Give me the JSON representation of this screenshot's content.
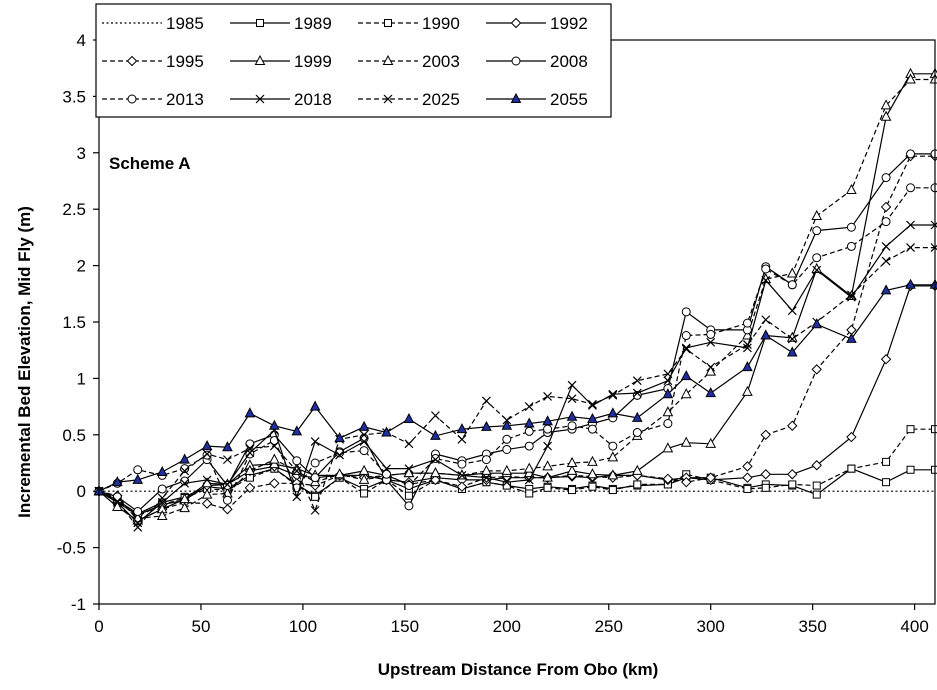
{
  "chart_data": {
    "type": "line",
    "title": "",
    "xlabel": "Upstream Distance From Obo (km)",
    "ylabel": "Incremental Bed Elevation, Mid Fly (m)",
    "annotation": "Scheme A",
    "xlim": [
      0,
      410
    ],
    "ylim": [
      -1,
      4
    ],
    "x_ticks": [
      0,
      50,
      100,
      150,
      200,
      250,
      300,
      350,
      400
    ],
    "y_ticks": [
      -1,
      -0.5,
      0,
      0.5,
      1,
      1.5,
      2,
      2.5,
      3,
      3.5,
      4
    ],
    "x_tick_labels": [
      "0",
      "50",
      "100",
      "150",
      "200",
      "250",
      "300",
      "350",
      "400"
    ],
    "y_tick_labels": [
      "-1",
      "-0.5",
      "0",
      "0.5",
      "1",
      "1.5",
      "2",
      "2.5",
      "3",
      "3.5",
      "4"
    ],
    "grid": false,
    "legend_position": "top-left",
    "x": [
      0,
      9,
      19,
      31,
      42,
      53,
      63,
      74,
      86,
      97,
      106,
      118,
      130,
      141,
      152,
      165,
      178,
      190,
      200,
      211,
      220,
      232,
      242,
      252,
      264,
      279,
      288,
      300,
      318,
      327,
      340,
      352,
      369,
      386,
      398,
      410
    ],
    "series": [
      {
        "name": "1985",
        "line": "dotted",
        "marker": "none",
        "values": [
          0,
          0,
          0,
          0,
          0,
          0,
          0,
          0,
          0,
          0,
          0,
          0,
          0,
          0,
          0,
          0,
          0,
          0,
          0,
          0,
          0,
          0,
          0,
          0,
          0,
          0,
          0,
          0,
          0,
          0,
          0,
          0,
          0,
          0,
          0,
          0
        ]
      },
      {
        "name": "1989",
        "line": "solid",
        "marker": "square-open",
        "values": [
          0,
          -0.08,
          -0.2,
          -0.1,
          -0.05,
          0.04,
          0.02,
          0.14,
          0.2,
          0.06,
          -0.04,
          0.12,
          0.02,
          0.1,
          0.02,
          0.1,
          0.02,
          0.08,
          0.05,
          0.02,
          0.04,
          0.02,
          0.05,
          0.02,
          0.05,
          0.06,
          0.12,
          0.12,
          0.03,
          0.06,
          0.05,
          -0.03,
          0.2,
          0.08,
          0.19,
          0.19
        ]
      },
      {
        "name": "1990",
        "line": "dashed",
        "marker": "square-open",
        "values": [
          0,
          -0.09,
          -0.22,
          -0.12,
          -0.06,
          0.02,
          0.01,
          0.12,
          0.2,
          0.05,
          -0.05,
          0.12,
          -0.02,
          0.1,
          -0.04,
          0.1,
          0.02,
          0.08,
          0.05,
          -0.02,
          0.03,
          0.01,
          0.04,
          0.01,
          0.06,
          0.06,
          0.15,
          0.1,
          0.02,
          0.03,
          0.06,
          0.05,
          0.2,
          0.26,
          0.55,
          0.55
        ]
      },
      {
        "name": "1992",
        "line": "solid",
        "marker": "diamond-open",
        "values": [
          0,
          -0.1,
          -0.21,
          -0.12,
          -0.08,
          0.05,
          0.06,
          0.18,
          0.22,
          0.14,
          0.12,
          0.14,
          0.14,
          0.1,
          0.08,
          0.12,
          0.1,
          0.1,
          0.12,
          0.12,
          0.12,
          0.13,
          0.12,
          0.14,
          0.14,
          0.1,
          0.12,
          0.1,
          0.12,
          0.15,
          0.15,
          0.23,
          0.48,
          1.17,
          1.82,
          1.82
        ]
      },
      {
        "name": "1995",
        "line": "dashed",
        "marker": "diamond-open",
        "values": [
          0,
          -0.04,
          -0.26,
          -0.16,
          -0.1,
          -0.11,
          -0.16,
          0.03,
          0.07,
          0.07,
          0.05,
          0.14,
          0.12,
          0.14,
          0.06,
          0.1,
          0.04,
          0.12,
          0.13,
          0.12,
          0.12,
          0.14,
          0.13,
          0.12,
          0.14,
          0.11,
          0.08,
          0.12,
          0.22,
          0.5,
          0.58,
          1.08,
          1.43,
          2.52,
          2.97,
          2.97
        ]
      },
      {
        "name": "1999",
        "line": "solid",
        "marker": "triangle-open",
        "values": [
          0,
          -0.14,
          -0.26,
          -0.16,
          -0.07,
          0.07,
          0.06,
          0.23,
          0.24,
          0.2,
          0.14,
          0.14,
          0.18,
          0.14,
          0.16,
          0.16,
          0.14,
          0.16,
          0.16,
          0.16,
          0.12,
          0.18,
          0.15,
          0.14,
          0.18,
          0.38,
          0.43,
          0.42,
          0.88,
          1.38,
          1.36,
          1.97,
          1.73,
          3.32,
          3.7,
          3.7
        ]
      },
      {
        "name": "2003",
        "line": "dashed",
        "marker": "triangle-open",
        "values": [
          0,
          -0.07,
          -0.24,
          -0.22,
          -0.15,
          -0.03,
          -0.02,
          0.18,
          0.28,
          0.18,
          0.08,
          0.15,
          0.1,
          0.14,
          0.16,
          0.16,
          0.14,
          0.18,
          0.18,
          0.2,
          0.22,
          0.25,
          0.26,
          0.3,
          0.49,
          0.7,
          0.86,
          1.06,
          1.38,
          1.88,
          1.93,
          2.44,
          2.67,
          3.42,
          3.65,
          3.65
        ]
      },
      {
        "name": "2008",
        "line": "solid",
        "marker": "circle-open",
        "values": [
          0,
          -0.05,
          -0.18,
          0.02,
          0.09,
          0.28,
          0.05,
          0.42,
          0.5,
          0.27,
          0.12,
          0.35,
          0.47,
          0.1,
          -0.13,
          0.33,
          0.27,
          0.33,
          0.37,
          0.4,
          0.52,
          0.55,
          0.6,
          0.65,
          0.85,
          0.91,
          1.59,
          1.43,
          1.43,
          1.99,
          1.83,
          2.31,
          2.34,
          2.78,
          2.99,
          2.99
        ]
      },
      {
        "name": "2013",
        "line": "dashed",
        "marker": "circle-open",
        "values": [
          0,
          0.07,
          0.19,
          0.14,
          0.2,
          0.32,
          -0.08,
          0.33,
          0.45,
          0.03,
          0.25,
          0.34,
          0.36,
          0.15,
          0.05,
          0.29,
          0.24,
          0.28,
          0.46,
          0.53,
          0.55,
          0.58,
          0.55,
          0.4,
          0.52,
          0.6,
          1.38,
          1.39,
          1.49,
          1.97,
          1.83,
          2.07,
          2.17,
          2.39,
          2.69,
          2.69
        ]
      },
      {
        "name": "2018",
        "line": "solid",
        "marker": "x",
        "values": [
          0,
          -0.1,
          -0.28,
          -0.1,
          0.07,
          0.1,
          0.06,
          0.34,
          0.54,
          -0.05,
          0.44,
          0.32,
          0.44,
          0.2,
          0.2,
          0.28,
          0.14,
          0.12,
          0.08,
          0.1,
          0.4,
          0.94,
          0.76,
          0.86,
          0.87,
          0.98,
          1.27,
          1.32,
          1.27,
          1.87,
          1.6,
          1.96,
          1.72,
          2.17,
          2.36,
          2.36
        ]
      },
      {
        "name": "2025",
        "line": "dashed",
        "marker": "x",
        "values": [
          0,
          -0.09,
          -0.32,
          -0.06,
          0.18,
          0.33,
          0.28,
          0.38,
          0.4,
          0.18,
          -0.17,
          0.46,
          0.5,
          0.52,
          0.42,
          0.67,
          0.46,
          0.8,
          0.63,
          0.75,
          0.84,
          0.82,
          0.77,
          0.85,
          0.98,
          1.04,
          1.26,
          1.1,
          1.3,
          1.52,
          1.35,
          1.5,
          1.74,
          2.04,
          2.16,
          2.16
        ]
      },
      {
        "name": "2055",
        "line": "solid",
        "marker": "triangle-filled",
        "values": [
          0,
          0.08,
          0.1,
          0.17,
          0.28,
          0.4,
          0.39,
          0.69,
          0.58,
          0.53,
          0.75,
          0.47,
          0.57,
          0.52,
          0.64,
          0.49,
          0.55,
          0.57,
          0.58,
          0.6,
          0.62,
          0.66,
          0.64,
          0.69,
          0.65,
          0.86,
          1.02,
          0.87,
          1.1,
          1.38,
          1.23,
          1.48,
          1.35,
          1.78,
          1.83,
          1.83
        ]
      }
    ]
  }
}
